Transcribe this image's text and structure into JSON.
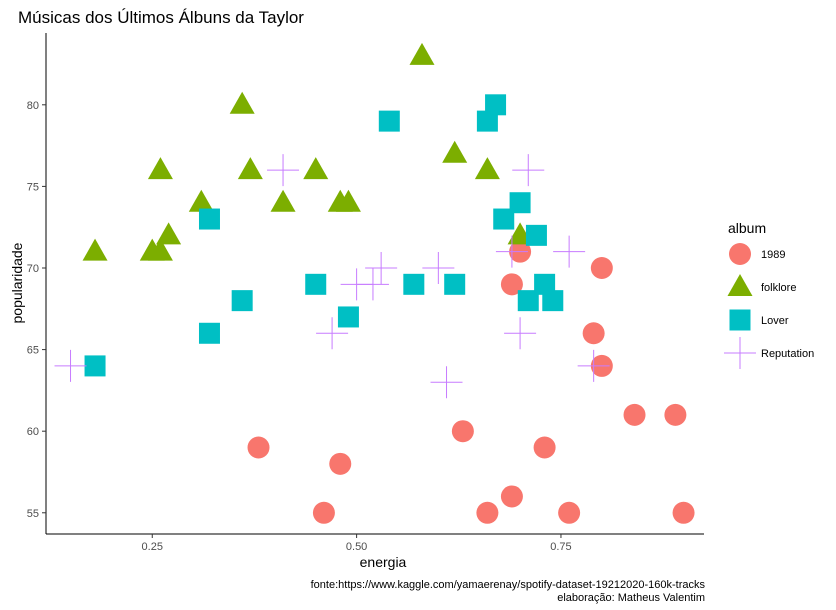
{
  "chart_data": {
    "type": "scatter",
    "title": "Músicas dos Últimos Álbuns da Taylor",
    "xlabel": "energia",
    "ylabel": "popularidade",
    "xlim": [
      0.12,
      0.925
    ],
    "ylim": [
      53.7,
      84.4
    ],
    "xticks": [
      0.25,
      0.5,
      0.75
    ],
    "xtick_labels": [
      "0.25",
      "0.50",
      "0.75"
    ],
    "yticks": [
      55,
      60,
      65,
      70,
      75,
      80
    ],
    "ytick_labels": [
      "55",
      "60",
      "65",
      "70",
      "75",
      "80"
    ],
    "grid": false,
    "legend": {
      "title": "album",
      "position": "right"
    },
    "series": [
      {
        "name": "1989",
        "marker": "circle",
        "color": "#F8766D",
        "x": [
          0.38,
          0.48,
          0.46,
          0.63,
          0.69,
          0.66,
          0.69,
          0.7,
          0.73,
          0.76,
          0.79,
          0.8,
          0.8,
          0.84,
          0.89,
          0.9
        ],
        "y": [
          59,
          58,
          55,
          60,
          69,
          55,
          56,
          71,
          59,
          55,
          66,
          70,
          64,
          61,
          61,
          55
        ]
      },
      {
        "name": "folklore",
        "marker": "triangle",
        "color": "#7CAE00",
        "x": [
          0.18,
          0.25,
          0.26,
          0.27,
          0.26,
          0.31,
          0.36,
          0.37,
          0.41,
          0.45,
          0.48,
          0.49,
          0.58,
          0.62,
          0.66,
          0.7
        ],
        "y": [
          71,
          71,
          71,
          72,
          76,
          74,
          80,
          76,
          74,
          76,
          74,
          74,
          83,
          77,
          76,
          72
        ]
      },
      {
        "name": "Lover",
        "marker": "square",
        "color": "#00BFC4",
        "x": [
          0.18,
          0.32,
          0.32,
          0.36,
          0.45,
          0.49,
          0.54,
          0.57,
          0.62,
          0.66,
          0.67,
          0.68,
          0.7,
          0.71,
          0.72,
          0.73,
          0.74
        ],
        "y": [
          64,
          73,
          66,
          68,
          69,
          67,
          79,
          69,
          69,
          79,
          80,
          73,
          74,
          68,
          72,
          69,
          68
        ]
      },
      {
        "name": "Reputation",
        "marker": "plus",
        "color": "#C77CFF",
        "x": [
          0.15,
          0.41,
          0.47,
          0.5,
          0.52,
          0.53,
          0.6,
          0.61,
          0.69,
          0.7,
          0.71,
          0.76,
          0.79
        ],
        "y": [
          64,
          76,
          66,
          69,
          69,
          70,
          70,
          63,
          71,
          66,
          76,
          71,
          64
        ]
      }
    ],
    "caption": [
      "fonte:https://www.kaggle.com/yamaerenay/spotify-dataset-19212020-160k-tracks",
      "elaboração: Matheus Valentim"
    ]
  }
}
